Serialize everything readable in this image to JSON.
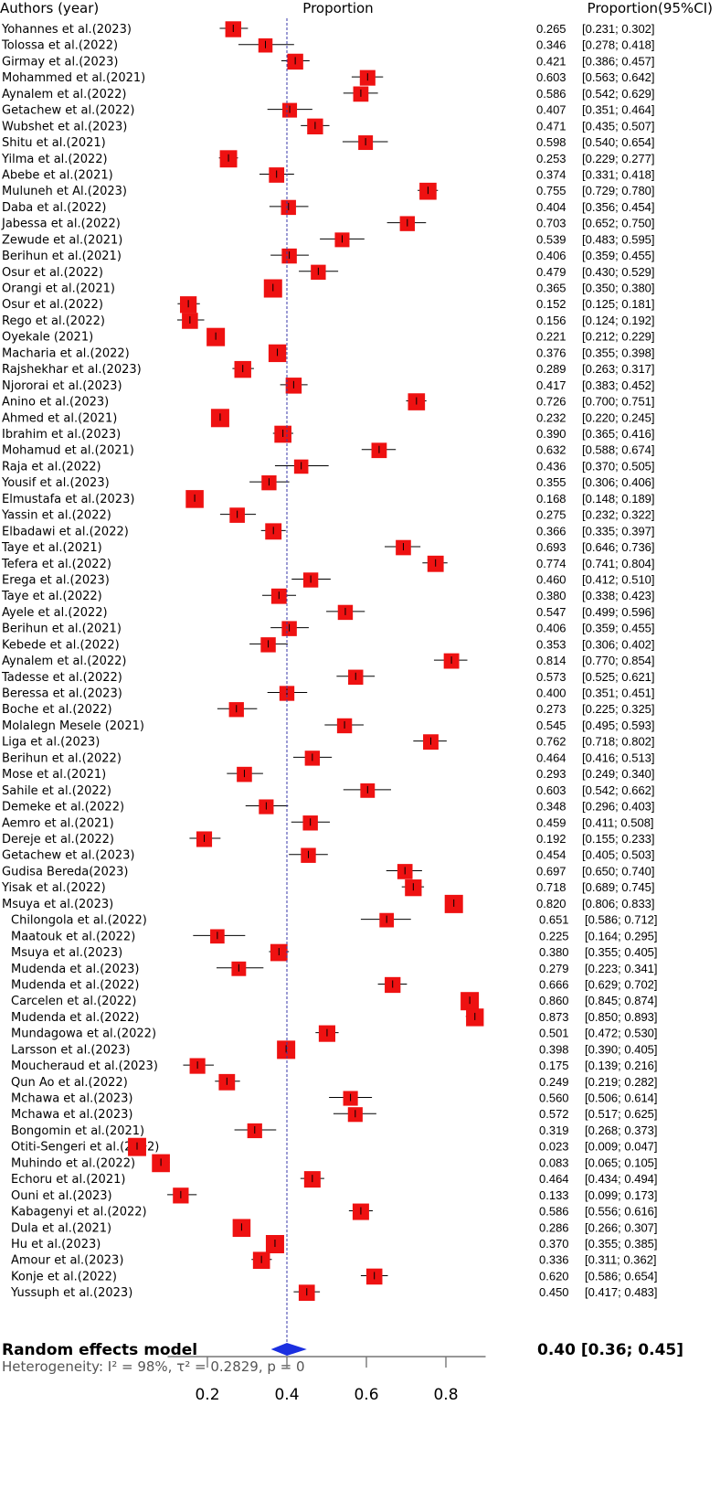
{
  "chart_data": {
    "type": "forest",
    "headers": {
      "study": "Authors (year)",
      "plot": "Proportion",
      "estimate": "Proportion(95%CI)"
    },
    "studies": [
      {
        "label": "Yohannes et al.(2023)",
        "est": 0.265,
        "lo": 0.231,
        "hi": 0.302
      },
      {
        "label": "Tolossa et al.(2022)",
        "est": 0.346,
        "lo": 0.278,
        "hi": 0.418
      },
      {
        "label": "Girmay et al.(2023)",
        "est": 0.421,
        "lo": 0.386,
        "hi": 0.457
      },
      {
        "label": "Mohammed et al.(2021)",
        "est": 0.603,
        "lo": 0.563,
        "hi": 0.642
      },
      {
        "label": "Aynalem et al.(2022)",
        "est": 0.586,
        "lo": 0.542,
        "hi": 0.629
      },
      {
        "label": "Getachew et al.(2022)",
        "est": 0.407,
        "lo": 0.351,
        "hi": 0.464
      },
      {
        "label": "Wubshet et al.(2023)",
        "est": 0.471,
        "lo": 0.435,
        "hi": 0.507
      },
      {
        "label": "Shitu et al.(2021)",
        "est": 0.598,
        "lo": 0.54,
        "hi": 0.654
      },
      {
        "label": "Yilma et al.(2022)",
        "est": 0.253,
        "lo": 0.229,
        "hi": 0.277
      },
      {
        "label": "Abebe et al.(2021)",
        "est": 0.374,
        "lo": 0.331,
        "hi": 0.418
      },
      {
        "label": "Muluneh et Al.(2023)",
        "est": 0.755,
        "lo": 0.729,
        "hi": 0.78
      },
      {
        "label": "Daba et al.(2022)",
        "est": 0.404,
        "lo": 0.356,
        "hi": 0.454
      },
      {
        "label": "Jabessa et al.(2022)",
        "est": 0.703,
        "lo": 0.652,
        "hi": 0.75
      },
      {
        "label": "Zewude et al.(2021)",
        "est": 0.539,
        "lo": 0.483,
        "hi": 0.595
      },
      {
        "label": "Berihun et al.(2021)",
        "est": 0.406,
        "lo": 0.359,
        "hi": 0.455
      },
      {
        "label": "Osur et al.(2022)",
        "est": 0.479,
        "lo": 0.43,
        "hi": 0.529
      },
      {
        "label": "Orangi et al.(2021)",
        "est": 0.365,
        "lo": 0.35,
        "hi": 0.38
      },
      {
        "label": "Osur et al.(2022)",
        "est": 0.152,
        "lo": 0.125,
        "hi": 0.181
      },
      {
        "label": "Rego et al.(2022)",
        "est": 0.156,
        "lo": 0.124,
        "hi": 0.192
      },
      {
        "label": "Oyekale (2021)",
        "est": 0.221,
        "lo": 0.212,
        "hi": 0.229
      },
      {
        "label": "Macharia et al.(2022)",
        "est": 0.376,
        "lo": 0.355,
        "hi": 0.398
      },
      {
        "label": "Rajshekhar et al.(2023)",
        "est": 0.289,
        "lo": 0.263,
        "hi": 0.317
      },
      {
        "label": "Njororai et al.(2023)",
        "est": 0.417,
        "lo": 0.383,
        "hi": 0.452
      },
      {
        "label": "Anino et al.(2023)",
        "est": 0.726,
        "lo": 0.7,
        "hi": 0.751
      },
      {
        "label": "Ahmed et al.(2021)",
        "est": 0.232,
        "lo": 0.22,
        "hi": 0.245
      },
      {
        "label": "Ibrahim et al.(2023)",
        "est": 0.39,
        "lo": 0.365,
        "hi": 0.416
      },
      {
        "label": "Mohamud et al.(2021)",
        "est": 0.632,
        "lo": 0.588,
        "hi": 0.674
      },
      {
        "label": "Raja et al.(2022)",
        "est": 0.436,
        "lo": 0.37,
        "hi": 0.505
      },
      {
        "label": "Yousif et al.(2023)",
        "est": 0.355,
        "lo": 0.306,
        "hi": 0.406
      },
      {
        "label": "Elmustafa et al.(2023)",
        "est": 0.168,
        "lo": 0.148,
        "hi": 0.189
      },
      {
        "label": "Yassin et al.(2022)",
        "est": 0.275,
        "lo": 0.232,
        "hi": 0.322
      },
      {
        "label": "Elbadawi et al.(2022)",
        "est": 0.366,
        "lo": 0.335,
        "hi": 0.397
      },
      {
        "label": "Taye et al.(2021)",
        "est": 0.693,
        "lo": 0.646,
        "hi": 0.736
      },
      {
        "label": "Tefera et al.(2022)",
        "est": 0.774,
        "lo": 0.741,
        "hi": 0.804
      },
      {
        "label": "Erega et al.(2023)",
        "est": 0.46,
        "lo": 0.412,
        "hi": 0.51
      },
      {
        "label": "Taye et al.(2022)",
        "est": 0.38,
        "lo": 0.338,
        "hi": 0.423
      },
      {
        "label": "Ayele et al.(2022)",
        "est": 0.547,
        "lo": 0.499,
        "hi": 0.596
      },
      {
        "label": "Berihun et al.(2021)",
        "est": 0.406,
        "lo": 0.359,
        "hi": 0.455
      },
      {
        "label": "Kebede et al.(2022)",
        "est": 0.353,
        "lo": 0.306,
        "hi": 0.402
      },
      {
        "label": "Aynalem et al.(2022)",
        "est": 0.814,
        "lo": 0.77,
        "hi": 0.854
      },
      {
        "label": "Tadesse et al.(2022)",
        "est": 0.573,
        "lo": 0.525,
        "hi": 0.621
      },
      {
        "label": "Beressa et al.(2023)",
        "est": 0.4,
        "lo": 0.351,
        "hi": 0.451
      },
      {
        "label": "Boche et al.(2022)",
        "est": 0.273,
        "lo": 0.225,
        "hi": 0.325
      },
      {
        "label": "Molalegn Mesele (2021)",
        "est": 0.545,
        "lo": 0.495,
        "hi": 0.593
      },
      {
        "label": "Liga et al.(2023)",
        "est": 0.762,
        "lo": 0.718,
        "hi": 0.802
      },
      {
        "label": "Berihun et al.(2022)",
        "est": 0.464,
        "lo": 0.416,
        "hi": 0.513
      },
      {
        "label": "Mose et al.(2021)",
        "est": 0.293,
        "lo": 0.249,
        "hi": 0.34
      },
      {
        "label": "Sahile et al.(2022)",
        "est": 0.603,
        "lo": 0.542,
        "hi": 0.662
      },
      {
        "label": "Demeke et al.(2022)",
        "est": 0.348,
        "lo": 0.296,
        "hi": 0.403
      },
      {
        "label": "Aemro et al.(2021)",
        "est": 0.459,
        "lo": 0.411,
        "hi": 0.508
      },
      {
        "label": "Dereje et al.(2022)",
        "est": 0.192,
        "lo": 0.155,
        "hi": 0.233
      },
      {
        "label": "Getachew et al.(2023)",
        "est": 0.454,
        "lo": 0.405,
        "hi": 0.503
      },
      {
        "label": "Gudisa Bereda(2023)",
        "est": 0.697,
        "lo": 0.65,
        "hi": 0.74
      },
      {
        "label": "Yisak et al.(2022)",
        "est": 0.718,
        "lo": 0.689,
        "hi": 0.745
      },
      {
        "label": "Msuya et al.(2023)",
        "est": 0.82,
        "lo": 0.806,
        "hi": 0.833
      },
      {
        "label": "Chilongola et al.(2022)",
        "est": 0.651,
        "lo": 0.586,
        "hi": 0.712
      },
      {
        "label": "Maatouk et al.(2022)",
        "est": 0.225,
        "lo": 0.164,
        "hi": 0.295
      },
      {
        "label": "Msuya et al.(2023)",
        "est": 0.38,
        "lo": 0.355,
        "hi": 0.405
      },
      {
        "label": "Mudenda et al.(2023)",
        "est": 0.279,
        "lo": 0.223,
        "hi": 0.341
      },
      {
        "label": "Mudenda et al.(2022)",
        "est": 0.666,
        "lo": 0.629,
        "hi": 0.702
      },
      {
        "label": "Carcelen et al.(2022)",
        "est": 0.86,
        "lo": 0.845,
        "hi": 0.874
      },
      {
        "label": "Mudenda et al.(2022)",
        "est": 0.873,
        "lo": 0.85,
        "hi": 0.893
      },
      {
        "label": "Mundagowa et al.(2022)",
        "est": 0.501,
        "lo": 0.472,
        "hi": 0.53
      },
      {
        "label": "Larsson et al.(2023)",
        "est": 0.398,
        "lo": 0.39,
        "hi": 0.405
      },
      {
        "label": "Moucheraud et al.(2023)",
        "est": 0.175,
        "lo": 0.139,
        "hi": 0.216
      },
      {
        "label": "Qun Ao et al.(2022)",
        "est": 0.249,
        "lo": 0.219,
        "hi": 0.282
      },
      {
        "label": "Mchawa et al.(2023)",
        "est": 0.56,
        "lo": 0.506,
        "hi": 0.614
      },
      {
        "label": "Mchawa et al.(2023)",
        "est": 0.572,
        "lo": 0.517,
        "hi": 0.625
      },
      {
        "label": "Bongomin et al.(2021)",
        "est": 0.319,
        "lo": 0.268,
        "hi": 0.373
      },
      {
        "label": "Otiti-Sengeri et al.(2022)",
        "est": 0.023,
        "lo": 0.009,
        "hi": 0.047
      },
      {
        "label": "Muhindo et al.(2022)",
        "est": 0.083,
        "lo": 0.065,
        "hi": 0.105
      },
      {
        "label": "Echoru et al.(2021)",
        "est": 0.464,
        "lo": 0.434,
        "hi": 0.494
      },
      {
        "label": "Ouni et al.(2023)",
        "est": 0.133,
        "lo": 0.099,
        "hi": 0.173
      },
      {
        "label": "Kabagenyi et al.(2022)",
        "est": 0.586,
        "lo": 0.556,
        "hi": 0.616
      },
      {
        "label": "Dula et al.(2021)",
        "est": 0.286,
        "lo": 0.266,
        "hi": 0.307
      },
      {
        "label": "Hu et al.(2023)",
        "est": 0.37,
        "lo": 0.355,
        "hi": 0.385
      },
      {
        "label": "Amour et al.(2023)",
        "est": 0.336,
        "lo": 0.311,
        "hi": 0.362
      },
      {
        "label": "Konje et al.(2022)",
        "est": 0.62,
        "lo": 0.586,
        "hi": 0.654
      },
      {
        "label": "Yussuph et al.(2023)",
        "est": 0.45,
        "lo": 0.417,
        "hi": 0.483
      }
    ],
    "pooled": {
      "label": "Random effects model",
      "est": 0.4,
      "lo": 0.36,
      "hi": 0.45,
      "text": "0.40 [0.36; 0.45]"
    },
    "heterogeneity": "Heterogeneity: I² = 98%, τ² = 0.2829, p = 0",
    "x_ticks": [
      "0.2",
      "0.4",
      "0.6",
      "0.8"
    ],
    "xlim": [
      0.0,
      1.0
    ],
    "reference_line": 0.4,
    "colors": {
      "box": "#ee1111",
      "diamond": "#1b2fe0",
      "ref_line": "#3a3aa8"
    }
  }
}
